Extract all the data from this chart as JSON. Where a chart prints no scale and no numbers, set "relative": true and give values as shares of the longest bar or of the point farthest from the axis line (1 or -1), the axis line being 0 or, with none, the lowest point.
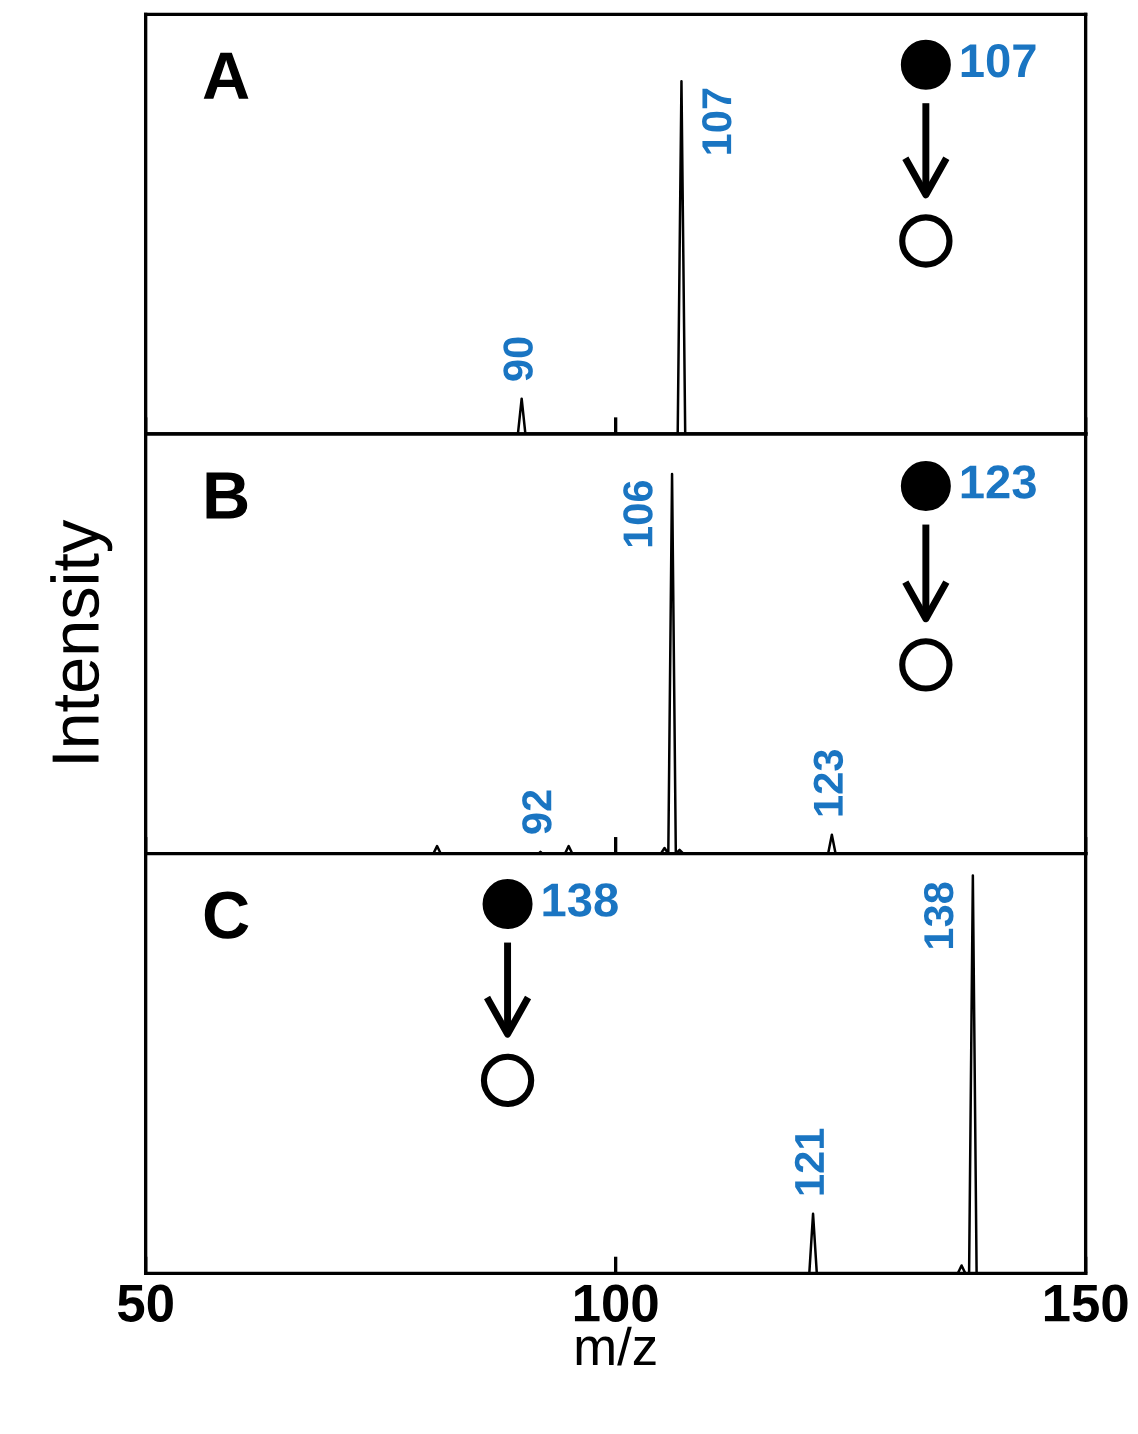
{
  "chart_data": [
    {
      "type": "line",
      "title": "A",
      "relative": true,
      "xlim": [
        50,
        150
      ],
      "xticks": [
        50,
        100,
        150
      ],
      "tick_labels": false,
      "series": [
        {
          "color": "#000000",
          "x": [
            50,
            89.6,
            90,
            90.4,
            106.6,
            107,
            107.4,
            150
          ],
          "values": [
            0,
            0,
            0.1,
            0,
            0,
            1,
            0,
            0
          ]
        }
      ],
      "annotations": [
        {
          "text": "90",
          "x": 90,
          "y": 0.1
        },
        {
          "text": "107",
          "x": 107,
          "y": 1
        },
        "107"
      ]
    },
    {
      "type": "line",
      "title": "B",
      "relative": true,
      "xlim": [
        50,
        150
      ],
      "xticks": [
        50,
        100,
        150
      ],
      "tick_labels": false,
      "ylabel": "Intensity",
      "series": [
        {
          "color": "#000000",
          "x": [
            50,
            80.6,
            81,
            81.4,
            91.8,
            92,
            92.2,
            94.6,
            95,
            95.4,
            104.8,
            105.2,
            105.6,
            106,
            106.4,
            106.8,
            107.2,
            122.6,
            123,
            123.4,
            150
          ],
          "values": [
            0,
            0,
            0.02,
            0,
            0,
            0.005,
            0,
            0,
            0.02,
            0,
            0,
            0.015,
            0,
            1,
            0,
            0.01,
            0,
            0,
            0.05,
            0,
            0
          ]
        }
      ],
      "annotations": [
        {
          "text": "92",
          "x": 92,
          "y": 0.005
        },
        {
          "text": "106",
          "x": 106,
          "y": 1
        },
        {
          "text": "123",
          "x": 123,
          "y": 0.05
        },
        "123"
      ]
    },
    {
      "type": "line",
      "title": "C",
      "relative": true,
      "xlim": [
        50,
        150
      ],
      "xticks": [
        50,
        100,
        150
      ],
      "tick_labels": "x",
      "xlabel": "m/z",
      "series": [
        {
          "color": "#000000",
          "x": [
            50,
            120.6,
            121,
            121.4,
            136.4,
            136.8,
            137.2,
            137.6,
            138,
            138.4,
            150
          ],
          "values": [
            0,
            0,
            0.15,
            0,
            0,
            0.02,
            0,
            0,
            1,
            0,
            0
          ]
        }
      ],
      "annotations": [
        {
          "text": "121",
          "x": 121,
          "y": 0.15
        },
        {
          "text": "138",
          "x": 138,
          "y": 1
        },
        "138"
      ]
    }
  ]
}
